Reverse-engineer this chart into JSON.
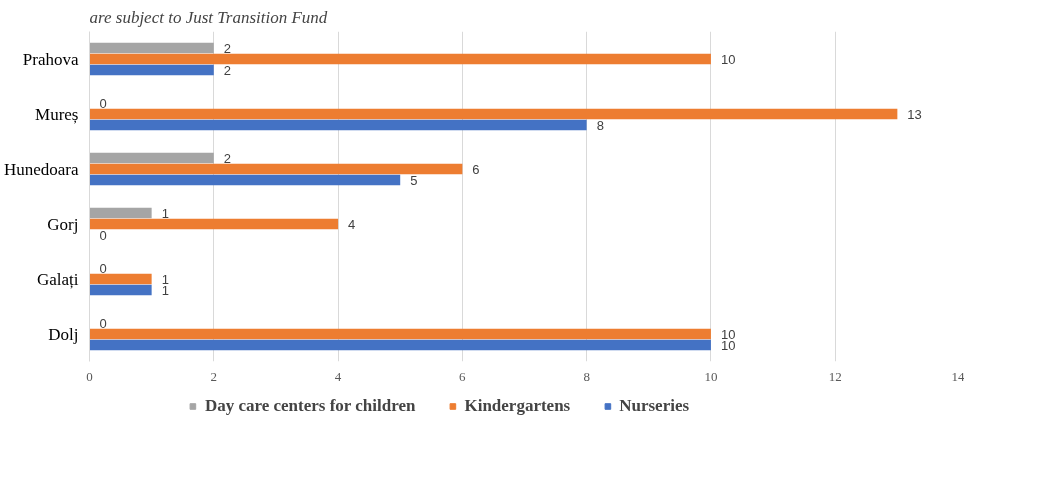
{
  "chart_data": {
    "type": "bar",
    "orientation": "horizontal",
    "title": "are subject to Just Transition Fund",
    "categories": [
      "Prahova",
      "Mureș",
      "Hunedoara",
      "Gorj",
      "Galați",
      "Dolj"
    ],
    "series": [
      {
        "name": "Day care centers for children",
        "color": "#a5a5a5",
        "values": [
          2,
          0,
          2,
          1,
          0,
          0
        ]
      },
      {
        "name": "Kindergartens",
        "color": "#ed7d31",
        "values": [
          10,
          13,
          6,
          4,
          1,
          10
        ]
      },
      {
        "name": "Nurseries",
        "color": "#4472c4",
        "values": [
          2,
          8,
          5,
          0,
          1,
          10
        ]
      }
    ],
    "xlim": [
      0,
      14
    ],
    "xticks": [
      0,
      2,
      4,
      6,
      8,
      10,
      12,
      14
    ],
    "grid": "x",
    "legend": "bottom",
    "data_labels": true
  }
}
